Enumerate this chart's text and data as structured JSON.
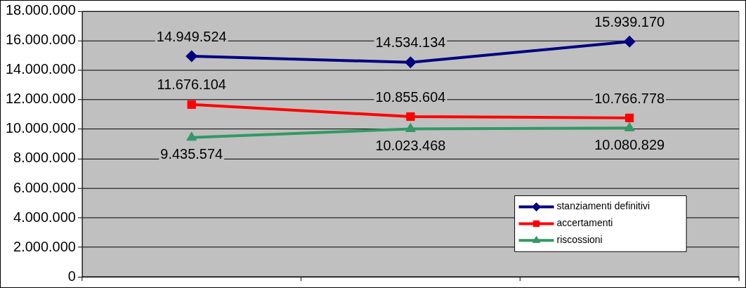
{
  "chart_data": {
    "type": "line",
    "categories": [
      null,
      null,
      null
    ],
    "series": [
      {
        "name": "stanziamenti definitivi",
        "color": "#000080",
        "marker": "diamond",
        "values": [
          14949524,
          14534134,
          15939170
        ],
        "value_labels": [
          "14.949.524",
          "14.534.134",
          "15.939.170"
        ]
      },
      {
        "name": "accertamenti",
        "color": "#ff0000",
        "marker": "square",
        "values": [
          11676104,
          10855604,
          10766778
        ],
        "value_labels": [
          "11.676.104",
          "10.855.604",
          "10.766.778"
        ]
      },
      {
        "name": "riscossioni",
        "color": "#339966",
        "marker": "triangle",
        "values": [
          9435574,
          10023468,
          10080829
        ],
        "value_labels": [
          "9.435.574",
          "10.023.468",
          "10.080.829"
        ]
      }
    ],
    "ylim": [
      0,
      18000000
    ],
    "yticks": [
      {
        "value": 0,
        "label": "0"
      },
      {
        "value": 2000000,
        "label": "2.000.000"
      },
      {
        "value": 4000000,
        "label": "4.000.000"
      },
      {
        "value": 6000000,
        "label": "6.000.000"
      },
      {
        "value": 8000000,
        "label": "8.000.000"
      },
      {
        "value": 10000000,
        "label": "10.000.000"
      },
      {
        "value": 12000000,
        "label": "12.000.000"
      },
      {
        "value": 14000000,
        "label": "14.000.000"
      },
      {
        "value": 16000000,
        "label": "16.000.000"
      },
      {
        "value": 18000000,
        "label": "18.000.000"
      }
    ],
    "grid": "y",
    "legend": "bottom right"
  }
}
